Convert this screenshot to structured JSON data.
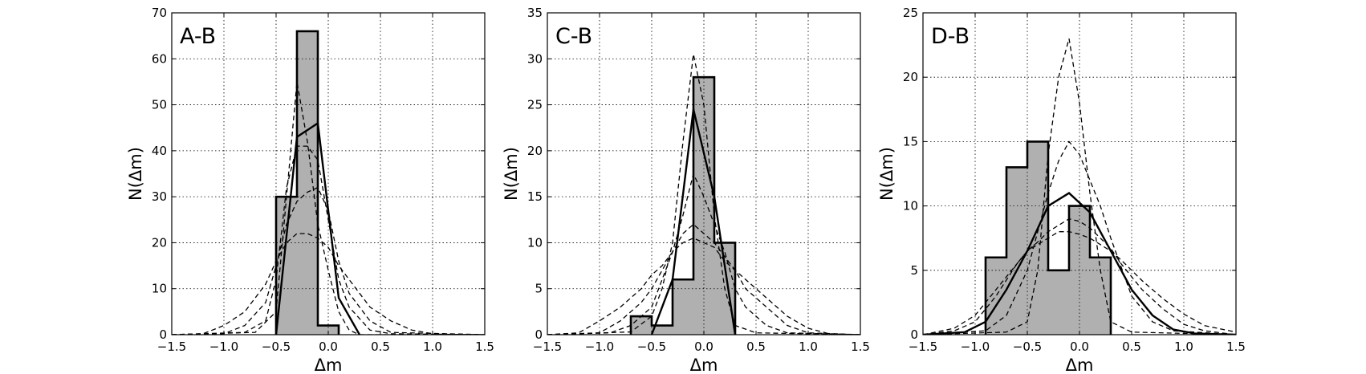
{
  "figure": {
    "background": "#ffffff"
  },
  "chart_data": [
    {
      "type": "bar",
      "panel_label": "A-B",
      "xlabel": "Δm",
      "ylabel": "N(Δm)",
      "xlim": [
        -1.5,
        1.5
      ],
      "ylim": [
        0,
        70
      ],
      "xticks": [
        -1.5,
        -1.0,
        -0.5,
        0.0,
        0.5,
        1.0,
        1.5
      ],
      "xtick_labels": [
        "−1.5",
        "−1.0",
        "−0.5",
        "0.0",
        "0.5",
        "1.0",
        "1.5"
      ],
      "yticks": [
        0,
        10,
        20,
        30,
        40,
        50,
        60,
        70
      ],
      "ytick_labels": [
        "0",
        "10",
        "20",
        "30",
        "40",
        "50",
        "60",
        "70"
      ],
      "grid": true,
      "bin_edges": [
        -0.5,
        -0.3,
        -0.1,
        0.1
      ],
      "counts": [
        30,
        66,
        2
      ],
      "bar_color": "#b0b0b0",
      "fit_line": {
        "x": [
          -0.5,
          -0.3,
          -0.1,
          0.1,
          0.3
        ],
        "y": [
          0,
          43,
          46,
          8,
          0
        ]
      },
      "dashed_curves": [
        {
          "x": [
            -1.5,
            -0.7,
            -0.5,
            -0.4,
            -0.3,
            -0.2,
            -0.1,
            0.0,
            0.1,
            0.2,
            0.3,
            1.5
          ],
          "y": [
            0,
            0.5,
            5,
            30,
            55,
            42,
            24,
            14,
            5,
            1,
            0,
            0
          ]
        },
        {
          "x": [
            -1.5,
            -0.8,
            -0.6,
            -0.5,
            -0.4,
            -0.3,
            -0.2,
            -0.1,
            0.0,
            0.1,
            0.2,
            0.4,
            0.6,
            1.5
          ],
          "y": [
            0,
            0.5,
            3,
            12,
            32,
            41,
            41,
            38,
            25,
            12,
            6,
            1,
            0.2,
            0
          ]
        },
        {
          "x": [
            -1.5,
            -1.0,
            -0.8,
            -0.6,
            -0.5,
            -0.4,
            -0.3,
            -0.2,
            -0.1,
            0.0,
            0.1,
            0.2,
            0.4,
            0.6,
            1.5
          ],
          "y": [
            0,
            0.2,
            2,
            7,
            15,
            24,
            29,
            31,
            32,
            27,
            16,
            9,
            3,
            0.5,
            0
          ]
        },
        {
          "x": [
            -1.5,
            -1.2,
            -1.0,
            -0.8,
            -0.6,
            -0.5,
            -0.4,
            -0.3,
            -0.2,
            -0.1,
            0.0,
            0.1,
            0.2,
            0.3,
            0.4,
            0.6,
            0.8,
            1.0,
            1.5
          ],
          "y": [
            0,
            0.2,
            2,
            5,
            11,
            16,
            20,
            22,
            22,
            21,
            19,
            15,
            12,
            9,
            6,
            3,
            1,
            0.2,
            0
          ]
        }
      ]
    },
    {
      "type": "bar",
      "panel_label": "C-B",
      "xlabel": "Δm",
      "ylabel": "N(Δm)",
      "xlim": [
        -1.5,
        1.5
      ],
      "ylim": [
        0,
        35
      ],
      "xticks": [
        -1.5,
        -1.0,
        -0.5,
        0.0,
        0.5,
        1.0,
        1.5
      ],
      "xtick_labels": [
        "−1.5",
        "−1.0",
        "−0.5",
        "0.0",
        "0.5",
        "1.0",
        "1.5"
      ],
      "yticks": [
        0,
        5,
        10,
        15,
        20,
        25,
        30,
        35
      ],
      "ytick_labels": [
        "0",
        "5",
        "10",
        "15",
        "20",
        "25",
        "30",
        "35"
      ],
      "grid": true,
      "bin_edges": [
        -0.7,
        -0.5,
        -0.3,
        -0.1,
        0.1,
        0.3
      ],
      "counts": [
        2,
        1,
        6,
        28,
        10
      ],
      "bar_color": "#b0b0b0",
      "fit_line": {
        "x": [
          -0.5,
          -0.3,
          -0.1,
          0.1,
          0.3
        ],
        "y": [
          0,
          6,
          24.5,
          15,
          0
        ]
      },
      "dashed_curves": [
        {
          "x": [
            -1.5,
            -0.7,
            -0.5,
            -0.4,
            -0.3,
            -0.2,
            -0.1,
            0.0,
            0.1,
            0.2,
            0.3,
            0.5,
            1.5
          ],
          "y": [
            0,
            0.3,
            2,
            5,
            10,
            21,
            30.5,
            25,
            13,
            5,
            1,
            0.2,
            0
          ]
        },
        {
          "x": [
            -1.5,
            -0.9,
            -0.7,
            -0.5,
            -0.4,
            -0.3,
            -0.2,
            -0.1,
            0.0,
            0.1,
            0.2,
            0.3,
            0.4,
            0.6,
            0.8,
            1.5
          ],
          "y": [
            0,
            0.2,
            1,
            3,
            6,
            9,
            13,
            17.5,
            15,
            12,
            9,
            5,
            3,
            1,
            0.2,
            0
          ]
        },
        {
          "x": [
            -1.5,
            -1.0,
            -0.8,
            -0.6,
            -0.5,
            -0.4,
            -0.3,
            -0.2,
            -0.1,
            0.0,
            0.1,
            0.2,
            0.3,
            0.4,
            0.6,
            0.8,
            1.0,
            1.5
          ],
          "y": [
            0,
            0.2,
            1.5,
            3.5,
            5,
            7,
            9,
            11,
            12,
            11,
            10,
            8.5,
            7,
            5,
            3,
            1,
            0.2,
            0
          ]
        },
        {
          "x": [
            -1.5,
            -1.2,
            -1.0,
            -0.8,
            -0.6,
            -0.5,
            -0.4,
            -0.3,
            -0.2,
            -0.1,
            0.0,
            0.1,
            0.2,
            0.3,
            0.4,
            0.6,
            0.8,
            1.0,
            1.2,
            1.5
          ],
          "y": [
            0,
            0.2,
            1.5,
            3,
            5,
            6.5,
            7.5,
            9,
            10,
            10.5,
            10,
            9.5,
            8,
            7,
            6,
            4,
            2,
            0.7,
            0.1,
            0
          ]
        }
      ]
    },
    {
      "type": "bar",
      "panel_label": "D-B",
      "xlabel": "Δm",
      "ylabel": "N(Δm)",
      "xlim": [
        -1.5,
        1.5
      ],
      "ylim": [
        0,
        25
      ],
      "xticks": [
        -1.5,
        -1.0,
        -0.5,
        0.0,
        0.5,
        1.0,
        1.5
      ],
      "xtick_labels": [
        "−1.5",
        "−1.0",
        "−0.5",
        "0.0",
        "0.5",
        "1.0",
        "1.5"
      ],
      "yticks": [
        0,
        5,
        10,
        15,
        20,
        25
      ],
      "ytick_labels": [
        "0",
        "5",
        "10",
        "15",
        "20",
        "25"
      ],
      "grid": true,
      "bin_edges": [
        -0.9,
        -0.7,
        -0.5,
        -0.3,
        -0.1,
        0.1,
        0.3
      ],
      "counts": [
        6,
        13,
        15,
        5,
        10,
        6
      ],
      "bar_color": "#b0b0b0",
      "fit_line": {
        "x": [
          -1.5,
          -1.1,
          -0.9,
          -0.7,
          -0.5,
          -0.3,
          -0.1,
          0.1,
          0.3,
          0.5,
          0.7,
          0.9,
          1.1,
          1.5
        ],
        "y": [
          0,
          0.2,
          1,
          3.5,
          6.5,
          10,
          11,
          9.5,
          6.5,
          3.5,
          1.5,
          0.4,
          0.1,
          0
        ]
      },
      "dashed_curves": [
        {
          "x": [
            -1.5,
            -0.7,
            -0.5,
            -0.4,
            -0.3,
            -0.2,
            -0.1,
            0.0,
            0.1,
            0.2,
            0.3,
            0.5,
            1.5
          ],
          "y": [
            0,
            0.2,
            1,
            5,
            14,
            20,
            23,
            18,
            11,
            5,
            1,
            0.2,
            0
          ]
        },
        {
          "x": [
            -1.5,
            -0.9,
            -0.7,
            -0.5,
            -0.4,
            -0.3,
            -0.2,
            -0.1,
            0.0,
            0.1,
            0.2,
            0.3,
            0.5,
            0.7,
            0.9,
            1.5
          ],
          "y": [
            0,
            0.3,
            1.5,
            5,
            8,
            11,
            13.5,
            15,
            14,
            12,
            10,
            7.5,
            3,
            1,
            0.3,
            0
          ]
        },
        {
          "x": [
            -1.5,
            -1.2,
            -1.0,
            -0.8,
            -0.6,
            -0.5,
            -0.4,
            -0.3,
            -0.2,
            -0.1,
            0.0,
            0.1,
            0.2,
            0.3,
            0.4,
            0.6,
            0.8,
            1.0,
            1.2,
            1.5
          ],
          "y": [
            0,
            0.3,
            1,
            3,
            5.5,
            6.5,
            7.2,
            8,
            8.5,
            9,
            8.8,
            8.3,
            7.5,
            6.7,
            5.5,
            3.5,
            2,
            0.8,
            0.3,
            0
          ]
        },
        {
          "x": [
            -1.5,
            -1.2,
            -1.0,
            -0.8,
            -0.6,
            -0.5,
            -0.4,
            -0.3,
            -0.2,
            -0.1,
            0.0,
            0.1,
            0.2,
            0.3,
            0.4,
            0.6,
            0.8,
            1.0,
            1.2,
            1.5
          ],
          "y": [
            0,
            0.5,
            1.5,
            3.5,
            5.5,
            6.5,
            7,
            7.5,
            8,
            8,
            7.8,
            7.5,
            7,
            6.5,
            5.8,
            4.2,
            2.8,
            1.6,
            0.7,
            0.2
          ]
        }
      ]
    }
  ]
}
